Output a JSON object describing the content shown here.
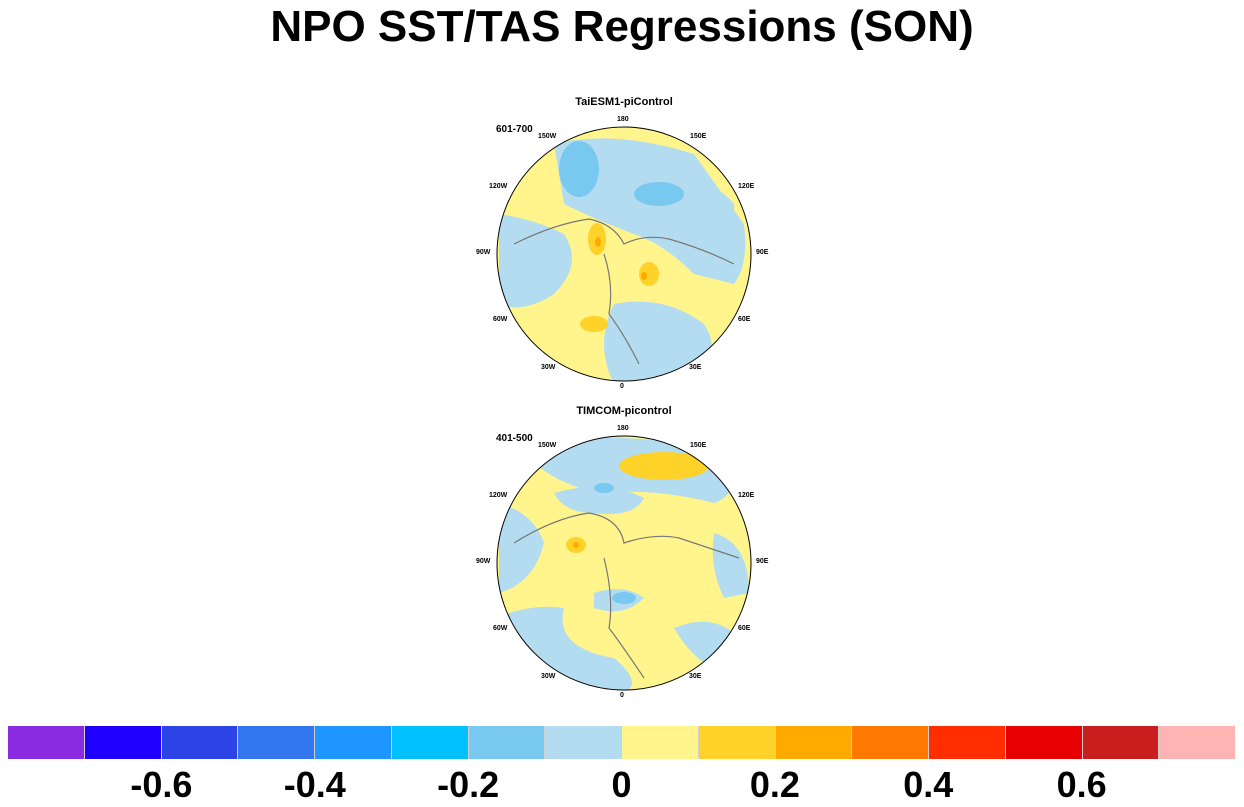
{
  "title": "NPO SST/TAS Regressions (SON)",
  "panels": [
    {
      "title": "TaiESM1-piControl",
      "period": "601-700"
    },
    {
      "title": "TIMCOM-picontrol",
      "period": "401-500"
    }
  ],
  "lon_labels": {
    "top": "180",
    "bottom": "0",
    "w150": "150W",
    "e150": "150E",
    "w120": "120W",
    "e120": "120E",
    "w90": "90W",
    "e90": "90E",
    "w60": "60W",
    "e60": "60E",
    "w30": "30W",
    "e30": "30E"
  },
  "colorbar": {
    "colors": [
      "#8a2be2",
      "#1e00ff",
      "#2c43e6",
      "#3276ee",
      "#1e96ff",
      "#00c0ff",
      "#78c8f0",
      "#b4dcf0",
      "#fff58c",
      "#ffd22a",
      "#ffaa00",
      "#ff7800",
      "#ff2d00",
      "#e60000",
      "#c81e1e",
      "#ffb4b4"
    ],
    "labels": [
      "-0.6",
      "-0.4",
      "-0.2",
      "0",
      "0.2",
      "0.4",
      "0.6"
    ]
  }
}
